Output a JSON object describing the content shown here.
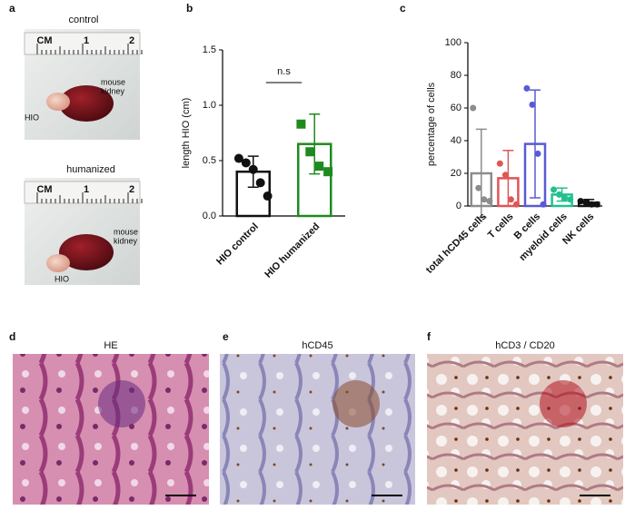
{
  "panel_labels": [
    "a",
    "b",
    "c",
    "d",
    "e",
    "f"
  ],
  "photos": [
    {
      "title": "control",
      "ruler_labels": [
        "CM",
        "1",
        "2"
      ],
      "kidney_label": [
        "mouse",
        "kidney"
      ],
      "hio_label": "HIO"
    },
    {
      "title": "humanized",
      "ruler_labels": [
        "CM",
        "1",
        "2"
      ],
      "kidney_label": [
        "mouse",
        "kidney"
      ],
      "hio_label": "HIO"
    }
  ],
  "micrographs": [
    {
      "title": "HE"
    },
    {
      "title": "hCD45"
    },
    {
      "title": "hCD3 / CD20"
    }
  ],
  "chart_data": [
    {
      "type": "bar",
      "y_label": "length HIO (cm)",
      "categories": [
        "HIO control",
        "HIO humanized"
      ],
      "values": [
        0.4,
        0.65
      ],
      "errors": [
        0.14,
        0.27
      ],
      "points": [
        [
          0.52,
          0.48,
          0.42,
          0.3,
          0.18
        ],
        [
          0.83,
          0.58,
          0.45,
          0.4
        ]
      ],
      "colors": [
        "#111111",
        "#1f8a1f"
      ],
      "markers": [
        "circle",
        "square"
      ],
      "ylim": [
        0,
        1.5
      ],
      "yticks": [
        {
          "value": 0,
          "label": "0.0"
        },
        0.5,
        {
          "value": 1,
          "label": "1.0"
        },
        1.5
      ],
      "annotation": "n.s"
    },
    {
      "type": "bar",
      "y_label": "percentage of cells",
      "categories": [
        "total hCD45 cells",
        "T cells",
        "B cells",
        "myeloid cells",
        "NK cells"
      ],
      "values": [
        20,
        17,
        38,
        7,
        2
      ],
      "errors": [
        27,
        17,
        33,
        4,
        2
      ],
      "points": [
        [
          60,
          11,
          4,
          3
        ],
        [
          26,
          19,
          4,
          1
        ],
        [
          72,
          62,
          32,
          1
        ],
        [
          10,
          7,
          5,
          4
        ],
        [
          3,
          2,
          1,
          1
        ]
      ],
      "colors": [
        "#8c8c8c",
        "#e05555",
        "#5a5ad6",
        "#22c08f",
        "#111111"
      ],
      "markers": [
        "circle",
        "circle",
        "circle",
        "circle",
        "circle"
      ],
      "ylim": [
        0,
        100
      ],
      "yticks": [
        0,
        20,
        40,
        60,
        80,
        100
      ]
    }
  ]
}
